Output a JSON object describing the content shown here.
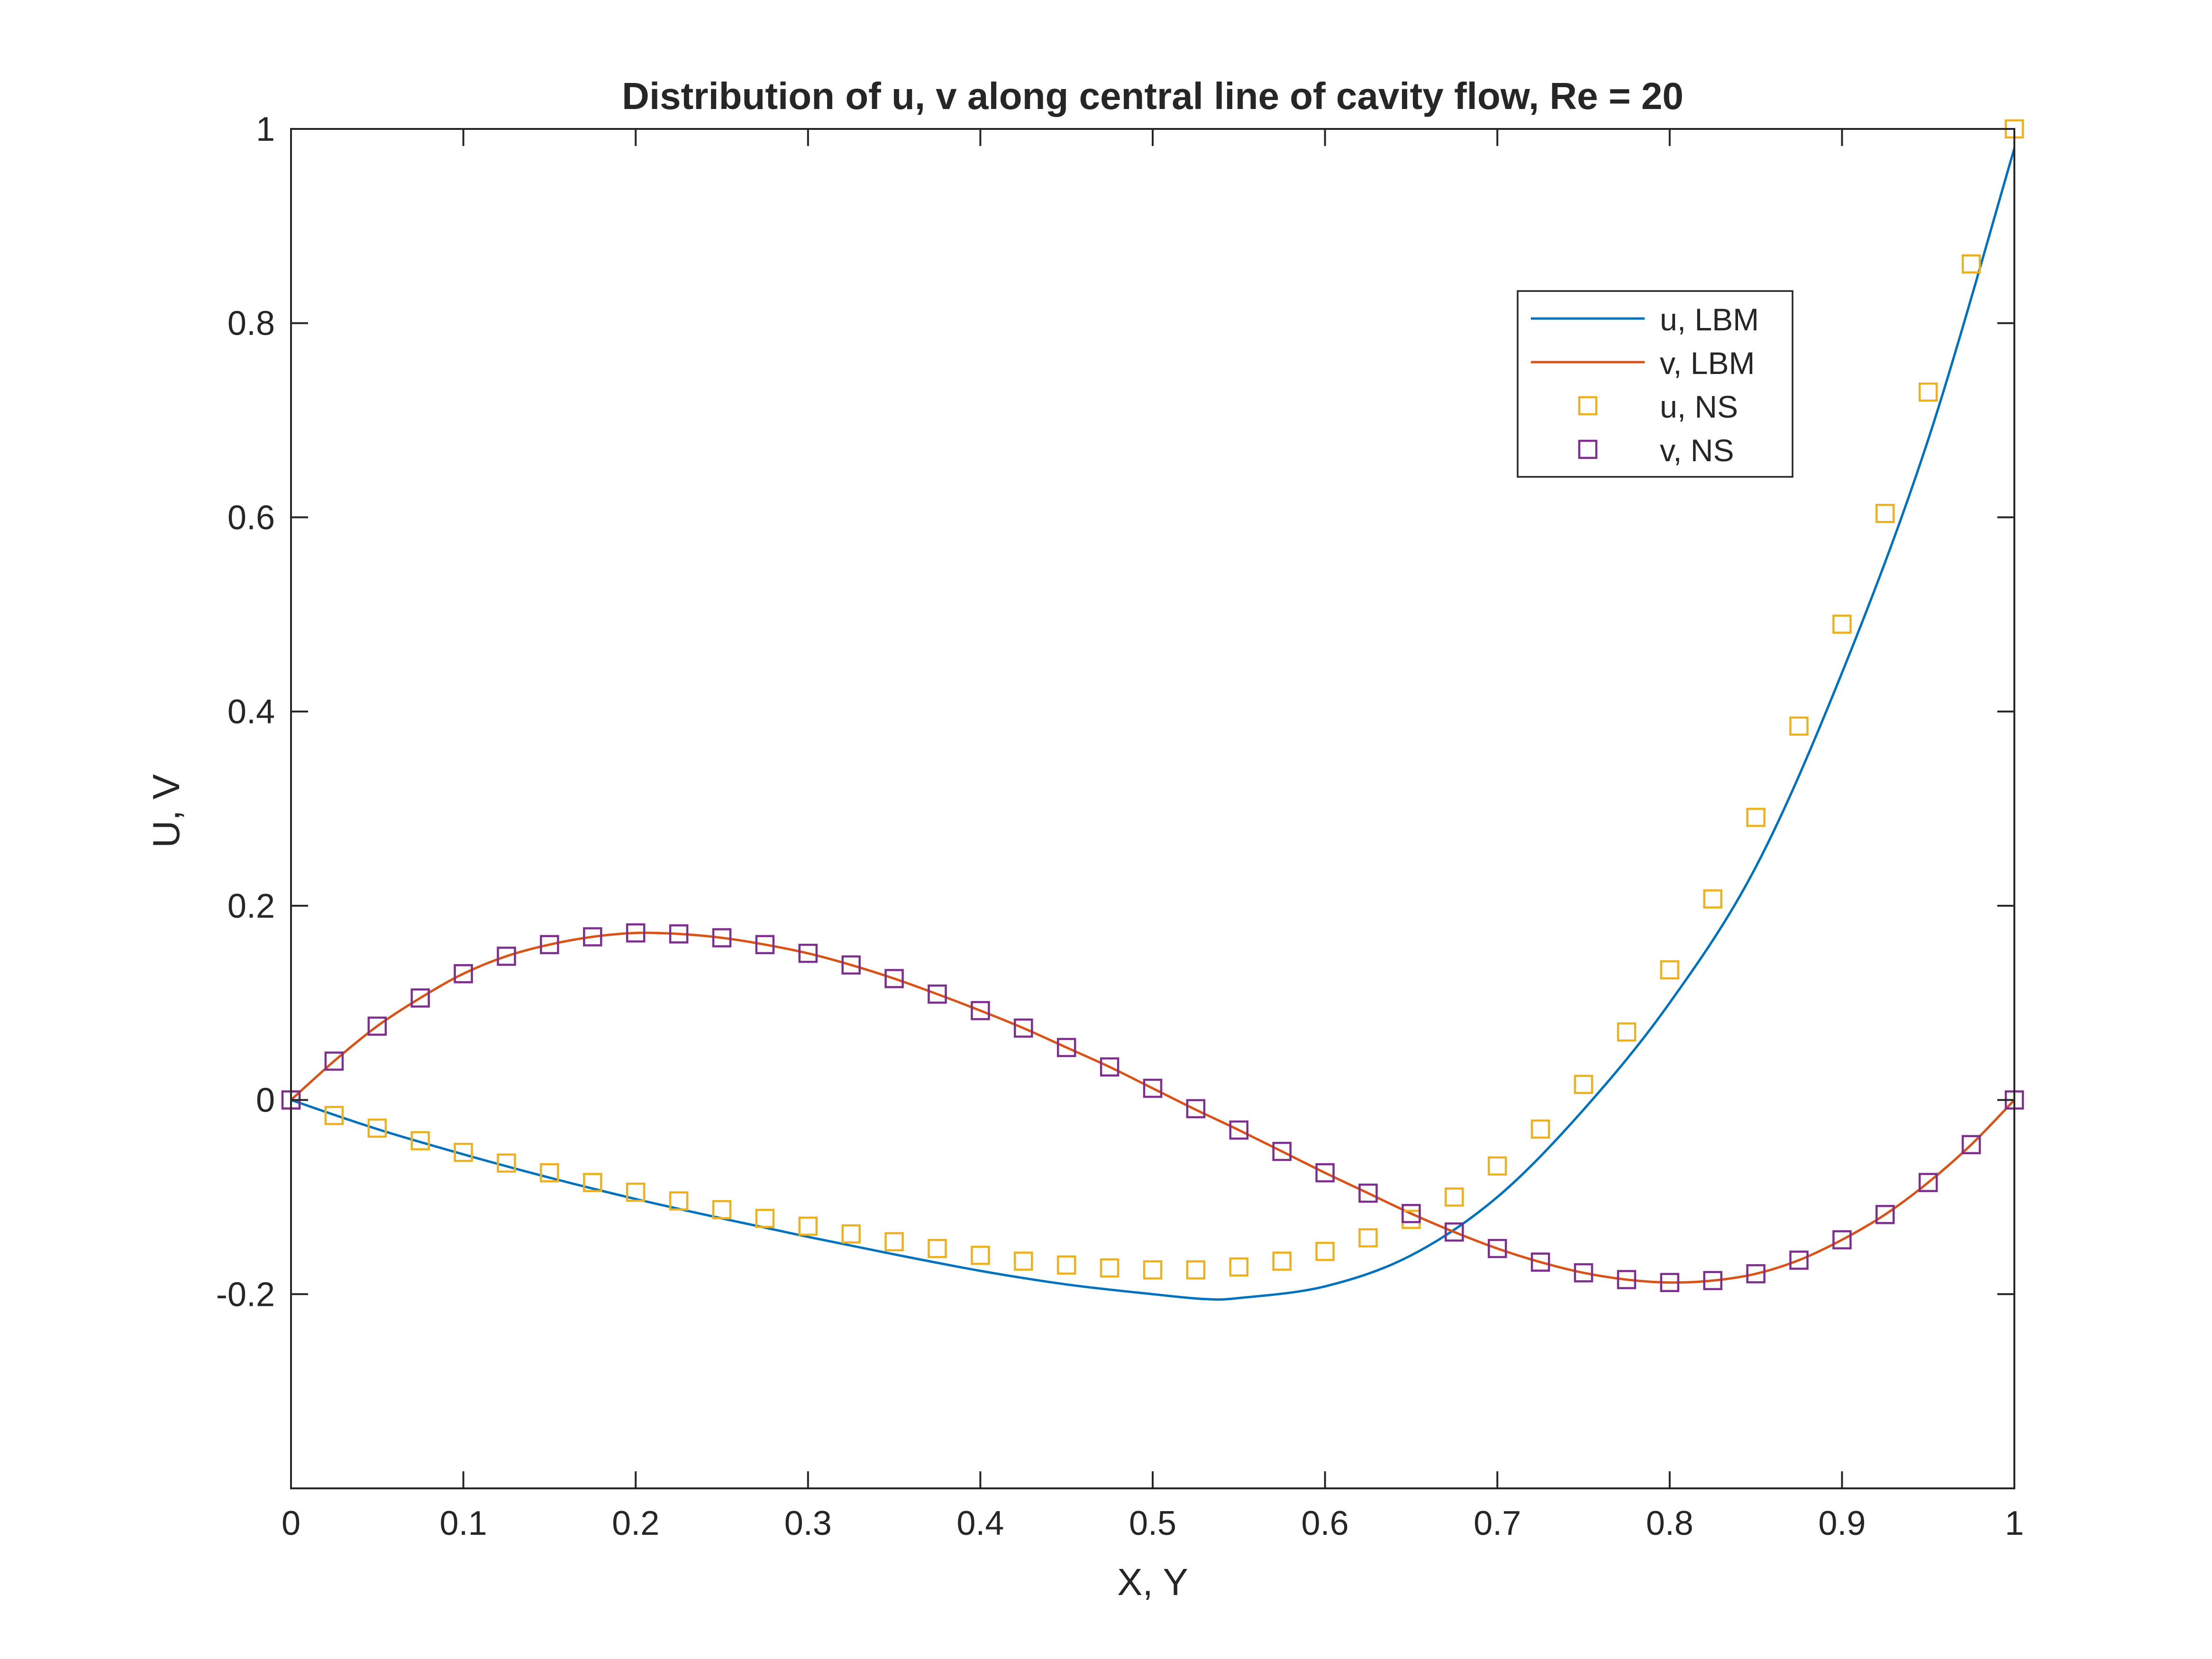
{
  "chart_data": {
    "type": "line",
    "title": "Distribution of u, v along central line of cavity flow, Re = 20",
    "xlabel": "X, Y",
    "ylabel": "U, V",
    "xlim": [
      0,
      1
    ],
    "ylim": [
      -0.4,
      1
    ],
    "x_ticks": [
      0,
      0.1,
      0.2,
      0.3,
      0.4,
      0.5,
      0.6,
      0.7,
      0.8,
      0.9,
      1
    ],
    "x_tick_labels": [
      "0",
      "0.1",
      "0.2",
      "0.3",
      "0.4",
      "0.5",
      "0.6",
      "0.7",
      "0.8",
      "0.9",
      "1"
    ],
    "y_ticks": [
      -0.2,
      0,
      0.2,
      0.4,
      0.6,
      0.8,
      1
    ],
    "y_tick_labels": [
      "-0.2",
      "0",
      "0.2",
      "0.4",
      "0.6",
      "0.8",
      "1"
    ],
    "grid": false,
    "legend_position": "top-right",
    "series": [
      {
        "name": "u, LBM",
        "style": "line",
        "color": "#0072BD",
        "x": [
          0,
          0.05,
          0.1,
          0.15,
          0.2,
          0.25,
          0.3,
          0.35,
          0.4,
          0.45,
          0.5,
          0.53,
          0.55,
          0.6,
          0.65,
          0.7,
          0.75,
          0.8,
          0.85,
          0.9,
          0.95,
          1
        ],
        "y": [
          0,
          -0.03,
          -0.056,
          -0.08,
          -0.102,
          -0.122,
          -0.141,
          -0.159,
          -0.176,
          -0.19,
          -0.2,
          -0.205,
          -0.204,
          -0.192,
          -0.16,
          -0.1,
          -0.01,
          0.1,
          0.24,
          0.44,
          0.68,
          0.98
        ]
      },
      {
        "name": "v, LBM",
        "style": "line",
        "color": "#D95319",
        "x": [
          0,
          0.025,
          0.05,
          0.075,
          0.1,
          0.125,
          0.15,
          0.175,
          0.2,
          0.225,
          0.25,
          0.275,
          0.3,
          0.325,
          0.35,
          0.375,
          0.4,
          0.425,
          0.45,
          0.475,
          0.5,
          0.525,
          0.55,
          0.575,
          0.6,
          0.625,
          0.65,
          0.675,
          0.7,
          0.725,
          0.75,
          0.775,
          0.8,
          0.825,
          0.85,
          0.875,
          0.9,
          0.925,
          0.95,
          0.975,
          1
        ],
        "y": [
          0,
          0.04,
          0.076,
          0.105,
          0.13,
          0.148,
          0.16,
          0.168,
          0.172,
          0.171,
          0.167,
          0.16,
          0.151,
          0.139,
          0.125,
          0.109,
          0.092,
          0.074,
          0.054,
          0.034,
          0.012,
          -0.01,
          -0.031,
          -0.053,
          -0.075,
          -0.096,
          -0.117,
          -0.136,
          -0.153,
          -0.167,
          -0.178,
          -0.185,
          -0.188,
          -0.186,
          -0.179,
          -0.165,
          -0.144,
          -0.118,
          -0.085,
          -0.046,
          0
        ]
      },
      {
        "name": "u, NS",
        "style": "markers",
        "marker": "square",
        "color": "#EDB120",
        "x": [
          0,
          0.025,
          0.05,
          0.075,
          0.1,
          0.125,
          0.15,
          0.175,
          0.2,
          0.225,
          0.25,
          0.275,
          0.3,
          0.325,
          0.35,
          0.375,
          0.4,
          0.425,
          0.45,
          0.475,
          0.5,
          0.525,
          0.55,
          0.575,
          0.6,
          0.625,
          0.65,
          0.675,
          0.7,
          0.725,
          0.75,
          0.775,
          0.8,
          0.825,
          0.85,
          0.875,
          0.9,
          0.925,
          0.95,
          0.975,
          1
        ],
        "y": [
          0,
          -0.016,
          -0.029,
          -0.042,
          -0.054,
          -0.065,
          -0.075,
          -0.085,
          -0.095,
          -0.104,
          -0.113,
          -0.122,
          -0.13,
          -0.138,
          -0.146,
          -0.153,
          -0.16,
          -0.166,
          -0.17,
          -0.173,
          -0.175,
          -0.175,
          -0.172,
          -0.166,
          -0.156,
          -0.142,
          -0.123,
          -0.1,
          -0.068,
          -0.03,
          0.016,
          0.07,
          0.134,
          0.207,
          0.291,
          0.385,
          0.49,
          0.604,
          0.729,
          0.861,
          1.0
        ]
      },
      {
        "name": "v, NS",
        "style": "markers",
        "marker": "square",
        "color": "#7E2F8E",
        "x": [
          0,
          0.025,
          0.05,
          0.075,
          0.1,
          0.125,
          0.15,
          0.175,
          0.2,
          0.225,
          0.25,
          0.275,
          0.3,
          0.325,
          0.35,
          0.375,
          0.4,
          0.425,
          0.45,
          0.475,
          0.5,
          0.525,
          0.55,
          0.575,
          0.6,
          0.625,
          0.65,
          0.675,
          0.7,
          0.725,
          0.75,
          0.775,
          0.8,
          0.825,
          0.85,
          0.875,
          0.9,
          0.925,
          0.95,
          0.975,
          1
        ],
        "y": [
          0,
          0.04,
          0.076,
          0.105,
          0.13,
          0.148,
          0.16,
          0.168,
          0.172,
          0.171,
          0.167,
          0.16,
          0.151,
          0.139,
          0.125,
          0.109,
          0.092,
          0.074,
          0.054,
          0.034,
          0.012,
          -0.009,
          -0.031,
          -0.053,
          -0.075,
          -0.096,
          -0.117,
          -0.136,
          -0.153,
          -0.167,
          -0.178,
          -0.185,
          -0.188,
          -0.186,
          -0.179,
          -0.165,
          -0.144,
          -0.118,
          -0.085,
          -0.046,
          0
        ]
      }
    ]
  }
}
